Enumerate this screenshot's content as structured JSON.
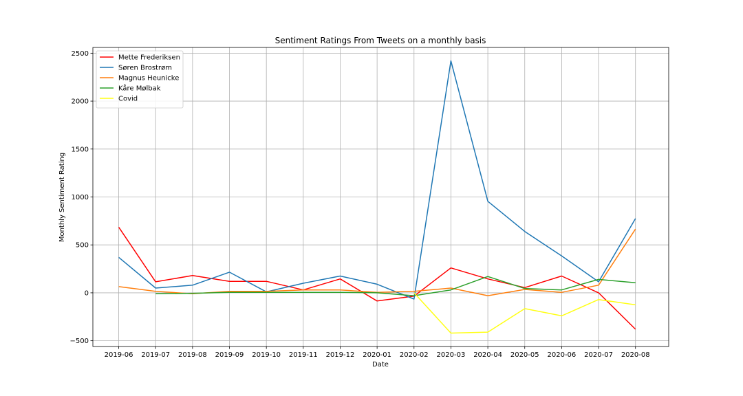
{
  "chart_data": {
    "type": "line",
    "title": "Sentiment Ratings From Tweets on a monthly basis",
    "xlabel": "Date",
    "ylabel": "Monthly Sentiment Rating",
    "categories": [
      "2019-06",
      "2019-07",
      "2019-08",
      "2019-09",
      "2019-10",
      "2019-11",
      "2019-12",
      "2020-01",
      "2020-02",
      "2020-03",
      "2020-04",
      "2020-05",
      "2020-06",
      "2020-07",
      "2020-08"
    ],
    "yticks": [
      -500,
      0,
      500,
      1000,
      1500,
      2000,
      2500
    ],
    "ytick_labels": [
      "−500",
      "0",
      "500",
      "1000",
      "1500",
      "2000",
      "2500"
    ],
    "ylim": [
      -560,
      2560
    ],
    "grid": true,
    "legend_position": "upper-left",
    "series": [
      {
        "name": "Mette Frederiksen",
        "color": "#ff0000",
        "values": [
          685,
          115,
          180,
          120,
          120,
          30,
          145,
          -85,
          -35,
          260,
          145,
          55,
          175,
          0,
          -380
        ]
      },
      {
        "name": "Søren Brostrøm",
        "color": "#1f77b4",
        "values": [
          370,
          50,
          80,
          215,
          10,
          100,
          175,
          90,
          -65,
          2420,
          955,
          640,
          385,
          115,
          775
        ]
      },
      {
        "name": "Magnus Heunicke",
        "color": "#ff7f0e",
        "values": [
          65,
          15,
          -10,
          15,
          15,
          30,
          30,
          5,
          15,
          50,
          -30,
          35,
          5,
          80,
          665
        ]
      },
      {
        "name": "Kåre Mølbak",
        "color": "#2ca02c",
        "values": [
          null,
          -10,
          -5,
          5,
          5,
          5,
          5,
          0,
          -30,
          30,
          170,
          45,
          30,
          140,
          105
        ]
      },
      {
        "name": "Covid",
        "color": "#ffff14",
        "values": [
          null,
          null,
          null,
          null,
          null,
          null,
          null,
          null,
          0,
          -420,
          -410,
          -165,
          -240,
          -70,
          -125
        ]
      }
    ]
  }
}
